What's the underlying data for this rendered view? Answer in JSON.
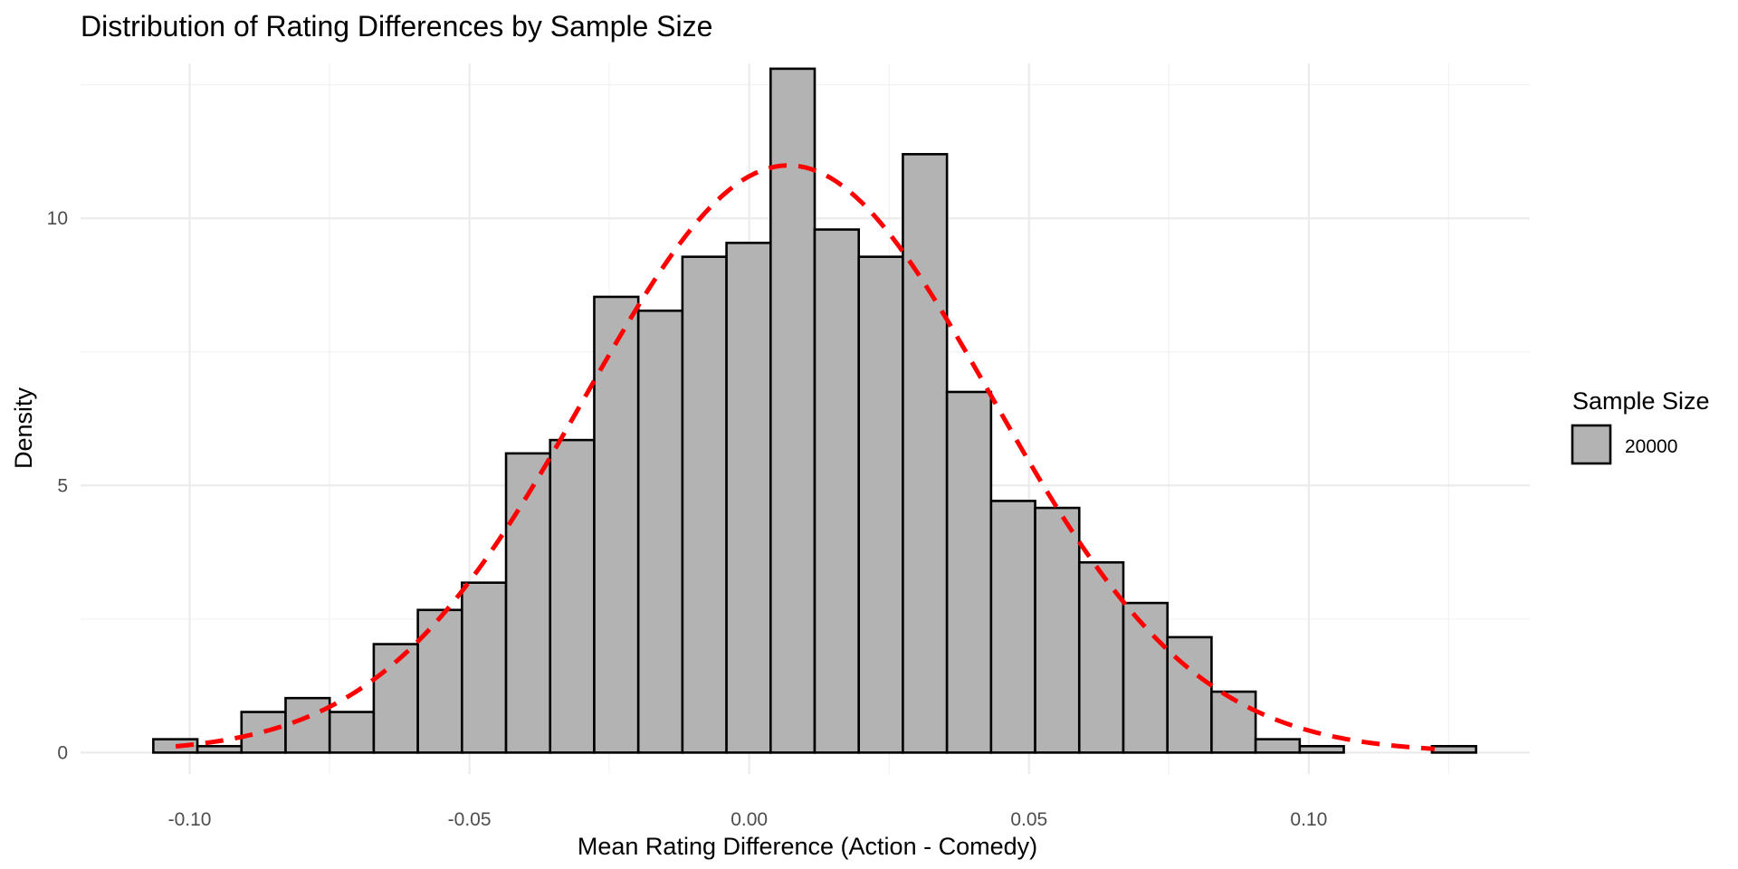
{
  "chart_data": {
    "type": "bar",
    "title": "Distribution of Rating Differences by Sample Size",
    "xlabel": "Mean Rating Difference (Action - Comedy)",
    "ylabel": "Density",
    "xlim": [
      -0.1195,
      0.1395
    ],
    "ylim": [
      -0.4,
      12.9
    ],
    "x_ticks": [
      -0.1,
      -0.05,
      0.0,
      0.05,
      0.1
    ],
    "x_tick_labels": [
      "-0.10",
      "-0.05",
      "0.00",
      "0.05",
      "0.10"
    ],
    "y_ticks": [
      0,
      5,
      10
    ],
    "y_tick_labels": [
      "0",
      "5",
      "10"
    ],
    "grid": true,
    "bin_width": 0.00788,
    "bins_start": -0.1065,
    "values": [
      0.25,
      0.12,
      0.76,
      1.02,
      0.76,
      2.03,
      2.67,
      3.18,
      5.6,
      5.85,
      8.53,
      8.27,
      9.28,
      9.54,
      12.8,
      9.79,
      9.28,
      11.2,
      6.75,
      4.71,
      4.58,
      3.56,
      2.8,
      2.16,
      1.14,
      0.25,
      0.12,
      0.0,
      0.0,
      0.12
    ],
    "bar_fill": "#b3b3b3",
    "bar_stroke": "#000000",
    "density_curve": {
      "mean": 0.007,
      "sd": 0.0363,
      "color": "#ff0000",
      "style": "dashed",
      "x_range": [
        -0.1025,
        0.1225
      ]
    },
    "legend": {
      "title": "Sample Size",
      "entries": [
        "20000"
      ],
      "placement": "right"
    }
  }
}
